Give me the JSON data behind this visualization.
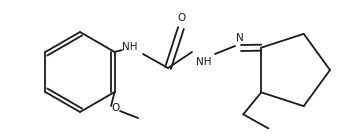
{
  "bg_color": "#ffffff",
  "line_color": "#1a1a1a",
  "line_width": 1.3,
  "font_size": 7.5,
  "figsize": [
    3.48,
    1.4
  ],
  "dpi": 100,
  "xlim": [
    0,
    348
  ],
  "ylim": [
    0,
    140
  ]
}
